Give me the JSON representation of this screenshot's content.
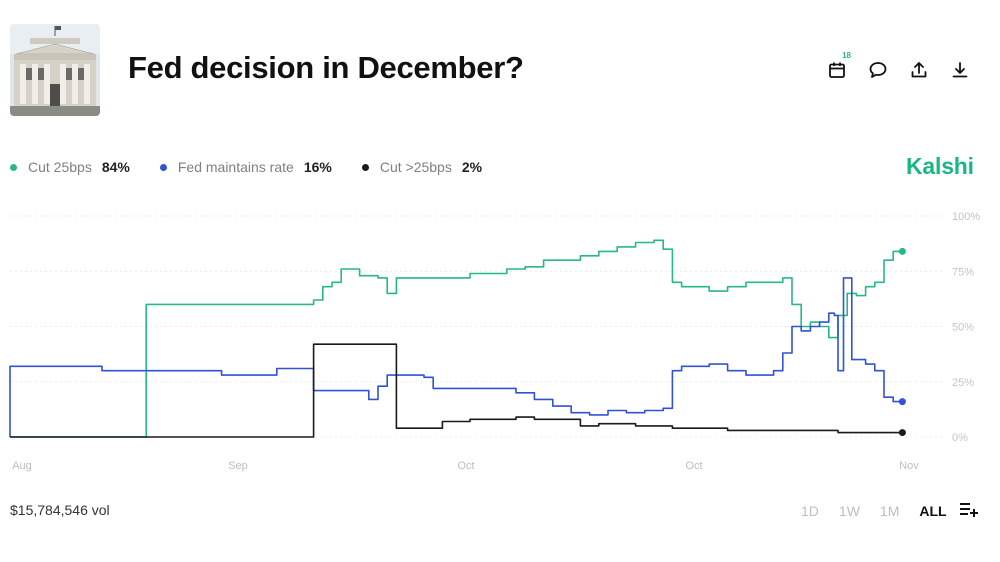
{
  "header": {
    "image_alt": "Federal Reserve building",
    "title": "Fed decision in December?",
    "toolbar": [
      {
        "name": "calendar-icon",
        "badge": "18"
      },
      {
        "name": "comment-icon"
      },
      {
        "name": "share-icon"
      },
      {
        "name": "download-icon"
      }
    ]
  },
  "legend": [
    {
      "name": "Cut 25bps",
      "value": "84%",
      "color": "#27b88a"
    },
    {
      "name": "Fed maintains rate",
      "value": "16%",
      "color": "#3052d6"
    },
    {
      "name": "Cut >25bps",
      "value": "2%",
      "color": "#1a1a1a"
    }
  ],
  "brand": {
    "name": "Kalshi",
    "color": "#19b883"
  },
  "footer": {
    "volume": "$15,784,546 vol",
    "ranges": [
      "1D",
      "1W",
      "1M",
      "ALL"
    ],
    "active_range": "ALL",
    "settings_icon": "chart-settings-icon"
  },
  "chart_data": {
    "type": "line",
    "x_tick_labels": [
      "Aug",
      "Sep",
      "Oct",
      "Oct",
      "Nov"
    ],
    "y_tick_labels": [
      "100%",
      "75%",
      "50%",
      "25%",
      "0%"
    ],
    "ylim": [
      0,
      100
    ],
    "grid": true,
    "legend_position": "top-left",
    "series": [
      {
        "name": "Cut 25bps",
        "color": "#27b88a",
        "points": [
          [
            0,
            0
          ],
          [
            14.8,
            0
          ],
          [
            14.8,
            60
          ],
          [
            33,
            60
          ],
          [
            33,
            62
          ],
          [
            34,
            68
          ],
          [
            35,
            70
          ],
          [
            36,
            76
          ],
          [
            38,
            73
          ],
          [
            40,
            72
          ],
          [
            41,
            65
          ],
          [
            42,
            72
          ],
          [
            46,
            72
          ],
          [
            50,
            74
          ],
          [
            54,
            76
          ],
          [
            56,
            77
          ],
          [
            58,
            80
          ],
          [
            60,
            80
          ],
          [
            62,
            82
          ],
          [
            64,
            84
          ],
          [
            66,
            86
          ],
          [
            68,
            88
          ],
          [
            70,
            89
          ],
          [
            71,
            85
          ],
          [
            72,
            70
          ],
          [
            73,
            68
          ],
          [
            76,
            66
          ],
          [
            78,
            68
          ],
          [
            80,
            70
          ],
          [
            82,
            70
          ],
          [
            84,
            72
          ],
          [
            85,
            60
          ],
          [
            86,
            50
          ],
          [
            87,
            52
          ],
          [
            88,
            50
          ],
          [
            89,
            45
          ],
          [
            90,
            55
          ],
          [
            91,
            65
          ],
          [
            92,
            64
          ],
          [
            93,
            68
          ],
          [
            94,
            70
          ],
          [
            95,
            80
          ],
          [
            96,
            84
          ],
          [
            97,
            84
          ]
        ],
        "end_value": 84
      },
      {
        "name": "Fed maintains rate",
        "color": "#3052d6",
        "points": [
          [
            0,
            0
          ],
          [
            0,
            32
          ],
          [
            7,
            32
          ],
          [
            10,
            30
          ],
          [
            22,
            30
          ],
          [
            23,
            28
          ],
          [
            29,
            28
          ],
          [
            29,
            31
          ],
          [
            33,
            31
          ],
          [
            33,
            21
          ],
          [
            38,
            21
          ],
          [
            39,
            17
          ],
          [
            40,
            23
          ],
          [
            41,
            28
          ],
          [
            45,
            27
          ],
          [
            46,
            22
          ],
          [
            52,
            22
          ],
          [
            55,
            20
          ],
          [
            57,
            17
          ],
          [
            59,
            14
          ],
          [
            61,
            11
          ],
          [
            63,
            10
          ],
          [
            65,
            12
          ],
          [
            67,
            11
          ],
          [
            69,
            12
          ],
          [
            71,
            13
          ],
          [
            72,
            30
          ],
          [
            73,
            32
          ],
          [
            76,
            33
          ],
          [
            78,
            30
          ],
          [
            80,
            28
          ],
          [
            82,
            28
          ],
          [
            83,
            30
          ],
          [
            84,
            38
          ],
          [
            85,
            50
          ],
          [
            86,
            48
          ],
          [
            87,
            50
          ],
          [
            88,
            52
          ],
          [
            89,
            56
          ],
          [
            89.6,
            55
          ],
          [
            90,
            30
          ],
          [
            90.6,
            72
          ],
          [
            91.5,
            68
          ],
          [
            91.5,
            35
          ],
          [
            93,
            33
          ],
          [
            94,
            30
          ],
          [
            95,
            18
          ],
          [
            96,
            16
          ],
          [
            97,
            16
          ]
        ],
        "end_value": 16
      },
      {
        "name": "Cut >25bps",
        "color": "#1a1a1a",
        "points": [
          [
            0,
            0
          ],
          [
            33,
            0
          ],
          [
            33,
            42
          ],
          [
            42,
            42
          ],
          [
            42,
            4
          ],
          [
            46,
            4
          ],
          [
            47,
            7
          ],
          [
            50,
            8
          ],
          [
            55,
            9
          ],
          [
            57,
            8
          ],
          [
            60,
            8
          ],
          [
            62,
            5
          ],
          [
            64,
            6
          ],
          [
            66,
            6
          ],
          [
            68,
            5
          ],
          [
            70,
            5
          ],
          [
            72,
            4
          ],
          [
            74,
            4
          ],
          [
            78,
            3
          ],
          [
            82,
            3
          ],
          [
            86,
            3
          ],
          [
            90,
            2
          ],
          [
            94,
            2
          ],
          [
            97,
            2
          ]
        ],
        "end_value": 2
      }
    ]
  }
}
